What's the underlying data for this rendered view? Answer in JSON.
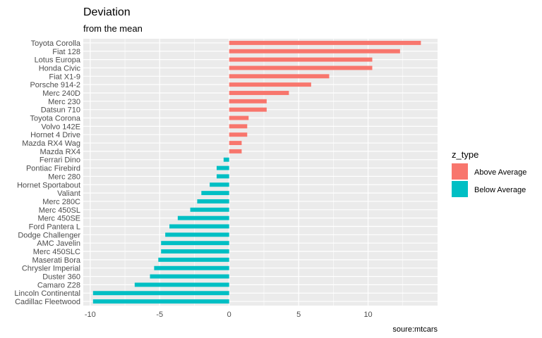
{
  "chart_data": {
    "type": "bar",
    "orientation": "horizontal",
    "title": "Deviation",
    "subtitle": "from the mean",
    "caption": "soure:mtcars",
    "xlabel": "",
    "ylabel": "",
    "xlim": [
      -10.5,
      15
    ],
    "x_ticks": [
      -10,
      -5,
      0,
      5,
      10
    ],
    "grid": true,
    "legend": {
      "title": "z_type",
      "position": "right",
      "entries": [
        {
          "label": "Above Average",
          "color": "#F8766D"
        },
        {
          "label": "Below Average",
          "color": "#00BFC4"
        }
      ]
    },
    "colors": {
      "above": "#F8766D",
      "below": "#00BFC4",
      "panel": "#EBEBEB",
      "grid": "#FFFFFF"
    },
    "categories": [
      "Toyota Corolla",
      "Fiat 128",
      "Lotus Europa",
      "Honda Civic",
      "Fiat X1-9",
      "Porsche 914-2",
      "Merc 240D",
      "Merc 230",
      "Datsun 710",
      "Toyota Corona",
      "Volvo 142E",
      "Hornet 4 Drive",
      "Mazda RX4 Wag",
      "Mazda RX4",
      "Ferrari Dino",
      "Pontiac Firebird",
      "Merc 280",
      "Hornet Sportabout",
      "Valiant",
      "Merc 280C",
      "Merc 450SL",
      "Merc 450SE",
      "Ford Pantera L",
      "Dodge Challenger",
      "AMC Javelin",
      "Merc 450SLC",
      "Maserati Bora",
      "Chrysler Imperial",
      "Duster 360",
      "Camaro Z28",
      "Lincoln Continental",
      "Cadillac Fleetwood"
    ],
    "values": [
      13.8,
      12.3,
      10.3,
      10.3,
      7.2,
      5.9,
      4.3,
      2.7,
      2.7,
      1.4,
      1.3,
      1.3,
      0.9,
      0.9,
      -0.4,
      -0.9,
      -0.9,
      -1.4,
      -2.0,
      -2.3,
      -2.8,
      -3.7,
      -4.3,
      -4.6,
      -4.9,
      -4.9,
      -5.1,
      -5.4,
      -5.7,
      -6.8,
      -9.8,
      -9.8
    ]
  }
}
